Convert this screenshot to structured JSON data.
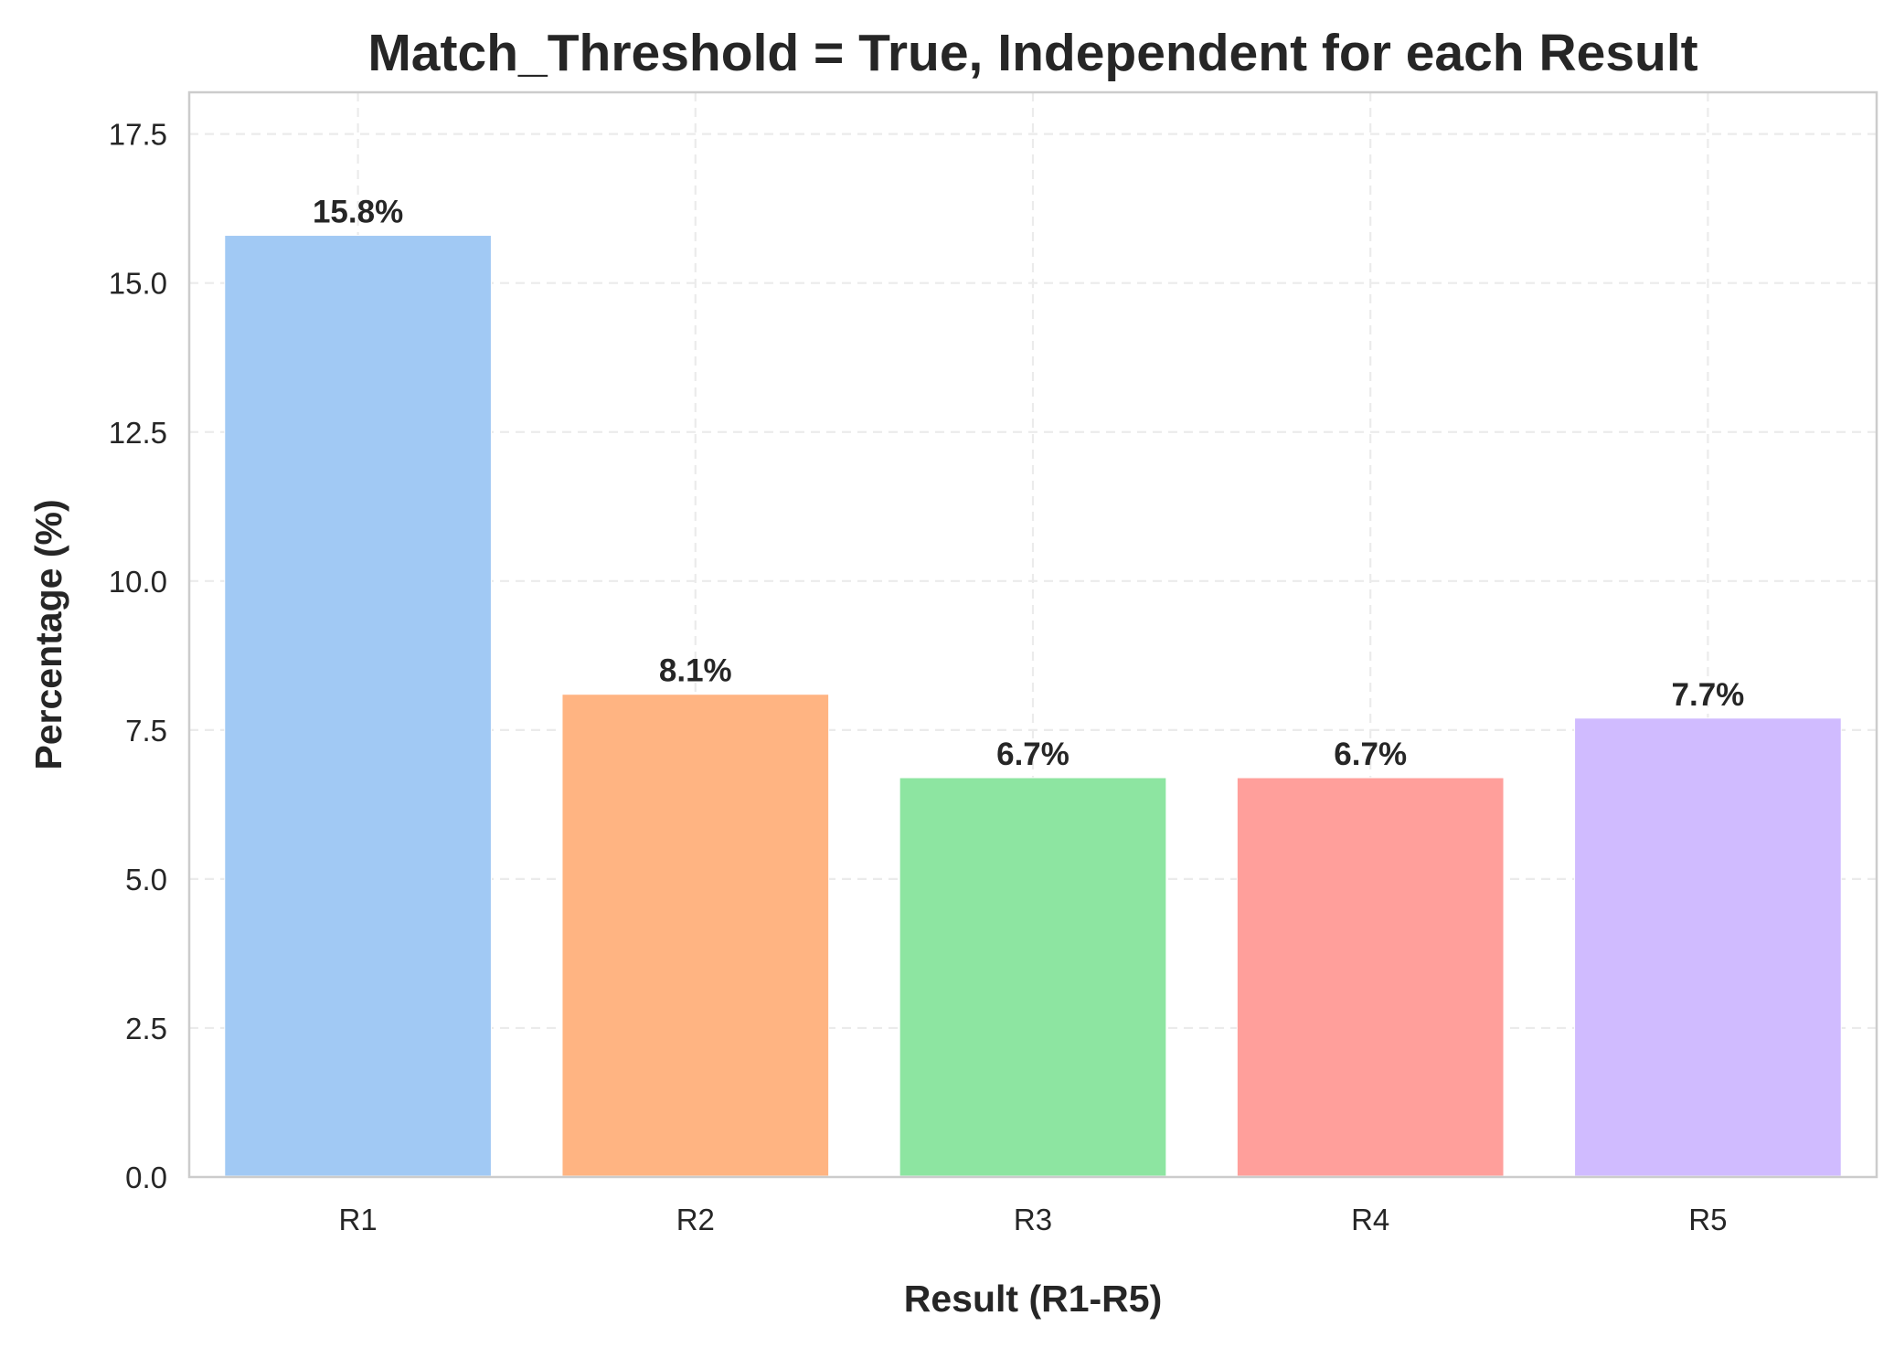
{
  "chart_data": {
    "type": "bar",
    "title": "Match_Threshold = True, Independent for each Result",
    "xlabel": "Result (R1-R5)",
    "ylabel": "Percentage (%)",
    "categories": [
      "R1",
      "R2",
      "R3",
      "R4",
      "R5"
    ],
    "values": [
      15.8,
      8.1,
      6.7,
      6.7,
      7.7
    ],
    "data_labels": [
      "15.8%",
      "8.1%",
      "6.7%",
      "6.7%",
      "7.7%"
    ],
    "colors": [
      "#a1c9f4",
      "#ffb482",
      "#8de5a1",
      "#ff9f9b",
      "#d0bbff"
    ],
    "ylim": [
      0,
      18.2
    ],
    "yticks": [
      0.0,
      2.5,
      5.0,
      7.5,
      10.0,
      12.5,
      15.0,
      17.5
    ],
    "ytick_labels": [
      "0.0",
      "2.5",
      "5.0",
      "7.5",
      "10.0",
      "12.5",
      "15.0",
      "17.5"
    ],
    "grid": true,
    "legend": "none"
  }
}
